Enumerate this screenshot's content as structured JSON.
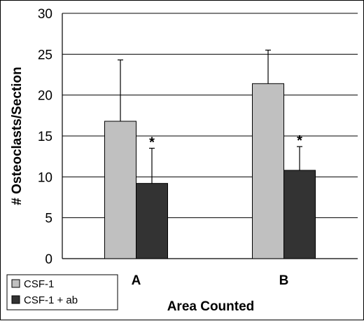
{
  "chart_data": {
    "type": "bar",
    "title": "",
    "xlabel": "Area Counted",
    "ylabel": "# Osteoclasts/Section",
    "categories": [
      "A",
      "B"
    ],
    "ylim": [
      0,
      30
    ],
    "yticks": [
      0,
      5,
      10,
      15,
      20,
      25,
      30
    ],
    "grid": "horizontal",
    "legend_position": "bottom-left",
    "series": [
      {
        "name": "CSF-1",
        "color": "#c0c0c0",
        "values": [
          16.8,
          21.4
        ],
        "error_plus": [
          7.5,
          4.1
        ],
        "annotations": [
          "",
          ""
        ]
      },
      {
        "name": "CSF-1 + ab",
        "color": "#333333",
        "values": [
          9.2,
          10.8
        ],
        "error_plus": [
          4.3,
          2.9
        ],
        "annotations": [
          "*",
          "*"
        ]
      }
    ]
  }
}
